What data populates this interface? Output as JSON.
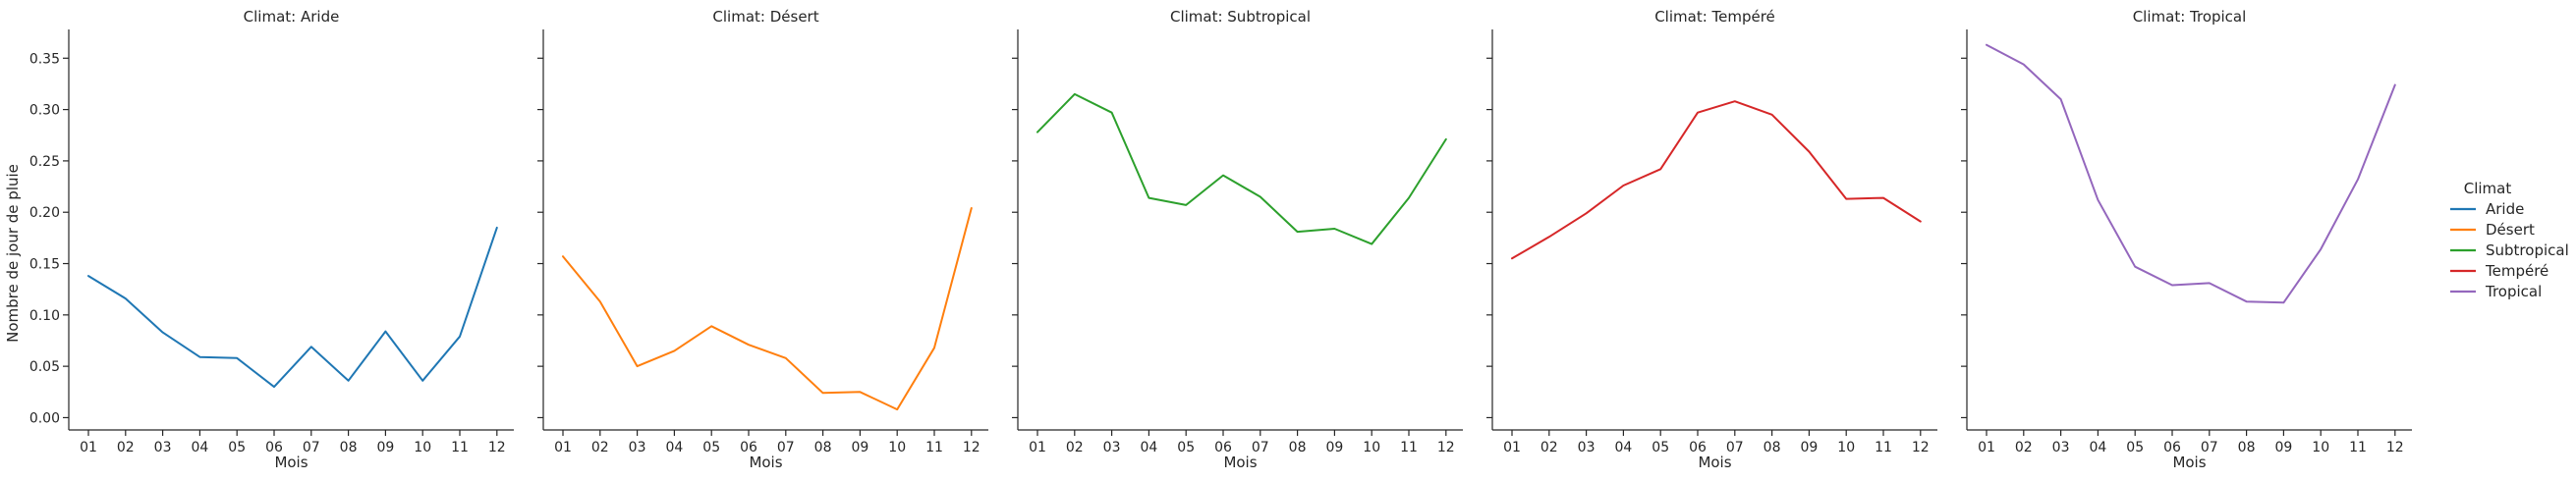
{
  "chart_data": {
    "type": "line",
    "layout": "facet-columns",
    "xlabel": "Mois",
    "ylabel": "Nombre de jour de pluie",
    "x": [
      "01",
      "02",
      "03",
      "04",
      "05",
      "06",
      "07",
      "08",
      "09",
      "10",
      "11",
      "12"
    ],
    "ylim": [
      -0.012,
      0.378
    ],
    "yticks": [
      0.0,
      0.05,
      0.1,
      0.15,
      0.2,
      0.25,
      0.3,
      0.35
    ],
    "ytick_labels": [
      "0.00",
      "0.05",
      "0.10",
      "0.15",
      "0.20",
      "0.25",
      "0.30",
      "0.35"
    ],
    "grid": false,
    "legend": {
      "title": "Climat",
      "placement": "right"
    },
    "panels": [
      {
        "title": "Climat: Aride",
        "series": "Aride",
        "color": "#1f77b4",
        "values": [
          0.138,
          0.116,
          0.083,
          0.059,
          0.058,
          0.03,
          0.069,
          0.036,
          0.084,
          0.036,
          0.079,
          0.185
        ]
      },
      {
        "title": "Climat: Désert",
        "series": "Désert",
        "color": "#ff7f0e",
        "values": [
          0.157,
          0.113,
          0.05,
          0.065,
          0.089,
          0.071,
          0.058,
          0.024,
          0.025,
          0.008,
          0.068,
          0.204
        ]
      },
      {
        "title": "Climat: Subtropical",
        "series": "Subtropical",
        "color": "#2ca02c",
        "values": [
          0.278,
          0.315,
          0.297,
          0.214,
          0.207,
          0.236,
          0.215,
          0.181,
          0.184,
          0.169,
          0.214,
          0.271
        ]
      },
      {
        "title": "Climat: Tempéré",
        "series": "Tempéré",
        "color": "#d62728",
        "values": [
          0.155,
          0.176,
          0.199,
          0.226,
          0.242,
          0.297,
          0.308,
          0.295,
          0.259,
          0.213,
          0.214,
          0.191
        ]
      },
      {
        "title": "Climat: Tropical",
        "series": "Tropical",
        "color": "#9467bd",
        "values": [
          0.363,
          0.344,
          0.31,
          0.212,
          0.147,
          0.129,
          0.131,
          0.113,
          0.112,
          0.164,
          0.232,
          0.324
        ]
      }
    ]
  }
}
